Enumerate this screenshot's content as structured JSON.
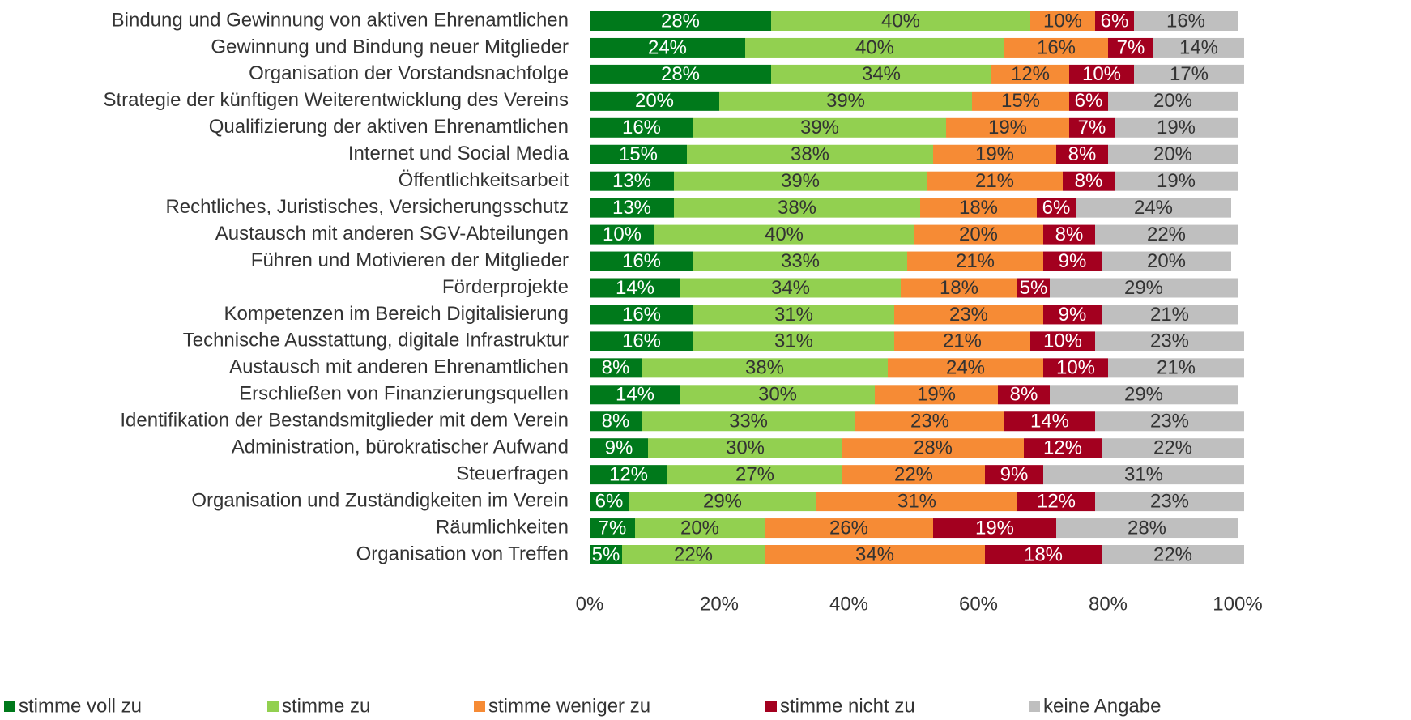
{
  "chart_data": {
    "type": "stacked-bar-horizontal",
    "categories": [
      "Bindung und Gewinnung von aktiven Ehrenamtlichen",
      "Gewinnung und Bindung neuer Mitglieder",
      "Organisation der Vorstandsnachfolge",
      "Strategie der künftigen Weiterentwicklung des Vereins",
      "Qualifizierung der aktiven Ehrenamtlichen",
      "Internet und Social Media",
      "Öffentlichkeitsarbeit",
      "Rechtliches, Juristisches, Versicherungsschutz",
      "Austausch mit anderen SGV-Abteilungen",
      "Führen und Motivieren der Mitglieder",
      "Förderprojekte",
      "Kompetenzen im Bereich Digitalisierung",
      "Technische Ausstattung, digitale Infrastruktur",
      "Austausch mit anderen Ehrenamtlichen",
      "Erschließen von Finanzierungsquellen",
      "Identifikation der Bestandsmitglieder mit dem Verein",
      "Administration, bürokratischer Aufwand",
      "Steuerfragen",
      "Organisation und Zuständigkeiten im Verein",
      "Räumlichkeiten",
      "Organisation von Treffen"
    ],
    "series": [
      {
        "name": "stimme voll zu",
        "color": "#00791b",
        "values": [
          28,
          24,
          28,
          20,
          16,
          15,
          13,
          13,
          10,
          16,
          14,
          16,
          16,
          8,
          14,
          8,
          9,
          12,
          6,
          7,
          5
        ],
        "value_labels": [
          "28%",
          "24%",
          "28%",
          "20%",
          "16%",
          "15%",
          "13%",
          "13%",
          "10%",
          "16%",
          "14%",
          "16%",
          "16%",
          "8%",
          "14%",
          "8%",
          "9%",
          "12%",
          "6%",
          "7%",
          "5%"
        ]
      },
      {
        "name": "stimme zu",
        "color": "#92d050",
        "values": [
          40,
          40,
          34,
          39,
          39,
          38,
          39,
          38,
          40,
          33,
          34,
          31,
          31,
          38,
          30,
          33,
          30,
          27,
          29,
          20,
          22
        ],
        "value_labels": [
          "40%",
          "40%",
          "34%",
          "39%",
          "39%",
          "38%",
          "39%",
          "38%",
          "40%",
          "33%",
          "34%",
          "31%",
          "31%",
          "38%",
          "30%",
          "33%",
          "30%",
          "27%",
          "29%",
          "20%",
          "22%"
        ]
      },
      {
        "name": "stimme weniger zu",
        "color": "#f68b35",
        "values": [
          10,
          16,
          12,
          15,
          19,
          19,
          21,
          18,
          20,
          21,
          18,
          23,
          21,
          24,
          19,
          23,
          28,
          22,
          31,
          26,
          34
        ],
        "value_labels": [
          "10%",
          "16%",
          "12%",
          "15%",
          "19%",
          "19%",
          "21%",
          "18%",
          "20%",
          "21%",
          "18%",
          "23%",
          "21%",
          "24%",
          "19%",
          "23%",
          "28%",
          "22%",
          "31%",
          "26%",
          "34%"
        ]
      },
      {
        "name": "stimme nicht zu",
        "color": "#a3001f",
        "values": [
          6,
          7,
          10,
          6,
          7,
          8,
          8,
          6,
          8,
          9,
          5,
          9,
          10,
          10,
          8,
          14,
          12,
          9,
          12,
          19,
          18
        ],
        "value_labels": [
          "6%",
          "7%",
          "10%",
          "6%",
          "7%",
          "8%",
          "8%",
          "6%",
          "8%",
          "9%",
          "5%",
          "9%",
          "10%",
          "10%",
          "8%",
          "14%",
          "12%",
          "9%",
          "12%",
          "19%",
          "18%"
        ]
      },
      {
        "name": "keine Angabe",
        "color": "#bfbfbf",
        "values": [
          16,
          14,
          17,
          20,
          19,
          20,
          19,
          24,
          22,
          20,
          29,
          21,
          23,
          21,
          29,
          23,
          22,
          31,
          23,
          28,
          22
        ],
        "value_labels": [
          "16%",
          "14%",
          "17%",
          "20%",
          "19%",
          "20%",
          "19%",
          "24%",
          "22%",
          "20%",
          "29%",
          "21%",
          "23%",
          "21%",
          "29%",
          "23%",
          "22%",
          "31%",
          "23%",
          "28%",
          "22%"
        ]
      }
    ],
    "xlim": [
      0,
      100
    ],
    "xticks": [
      {
        "value": 0,
        "label": "0%"
      },
      {
        "value": 20,
        "label": "20%"
      },
      {
        "value": 40,
        "label": "40%"
      },
      {
        "value": 60,
        "label": "60%"
      },
      {
        "value": 80,
        "label": "80%"
      },
      {
        "value": 100,
        "label": "100%"
      }
    ],
    "legend": "bottom"
  }
}
